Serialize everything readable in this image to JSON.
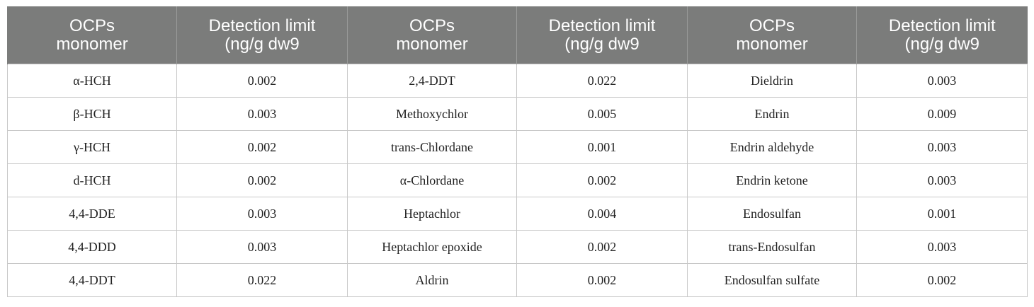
{
  "table": {
    "headers": [
      [
        "OCPs",
        "monomer"
      ],
      [
        "Detection limit",
        "(ng/g dw9"
      ],
      [
        "OCPs",
        "monomer"
      ],
      [
        "Detection limit",
        "(ng/g dw9"
      ],
      [
        "OCPs",
        "monomer"
      ],
      [
        "Detection limit",
        "(ng/g dw9"
      ]
    ],
    "rows": [
      [
        "α-HCH",
        "0.002",
        "2,4-DDT",
        "0.022",
        "Dieldrin",
        "0.003"
      ],
      [
        "β-HCH",
        "0.003",
        "Methoxychlor",
        "0.005",
        "Endrin",
        "0.009"
      ],
      [
        "γ-HCH",
        "0.002",
        "trans-Chlordane",
        "0.001",
        "Endrin aldehyde",
        "0.003"
      ],
      [
        "d-HCH",
        "0.002",
        "α-Chlordane",
        "0.002",
        "Endrin ketone",
        "0.003"
      ],
      [
        "4,4-DDE",
        "0.003",
        "Heptachlor",
        "0.004",
        "Endosulfan",
        "0.001"
      ],
      [
        "4,4-DDD",
        "0.003",
        "Heptachlor epoxide",
        "0.002",
        "trans-Endosulfan",
        "0.003"
      ],
      [
        "4,4-DDT",
        "0.022",
        "Aldrin",
        "0.002",
        "Endosulfan sulfate",
        "0.002"
      ]
    ]
  }
}
